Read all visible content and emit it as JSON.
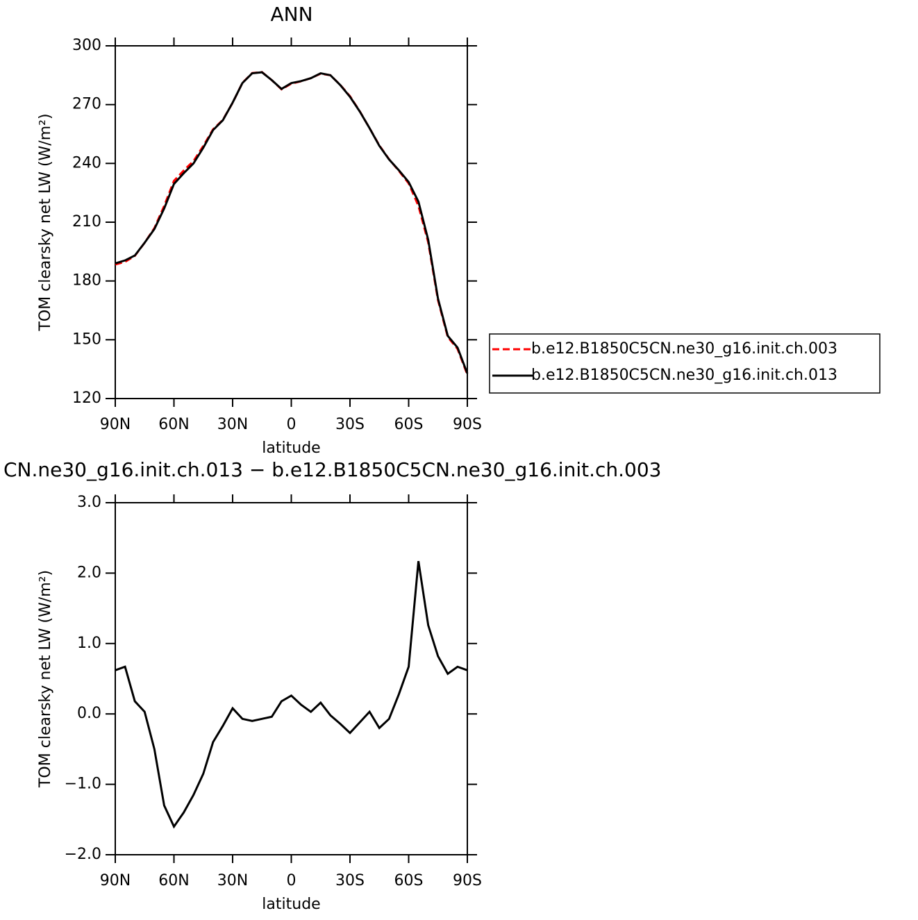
{
  "chart_data": [
    {
      "type": "line",
      "title": "ANN",
      "xlabel": "latitude",
      "ylabel": "TOM clearsky net LW (W/m²)",
      "x": [
        90,
        85,
        80,
        75,
        70,
        65,
        60,
        55,
        50,
        45,
        40,
        35,
        30,
        25,
        20,
        15,
        10,
        5,
        0,
        -5,
        -10,
        -15,
        -20,
        -25,
        -30,
        -35,
        -40,
        -45,
        -50,
        -55,
        -60,
        -65,
        -70,
        -75,
        -80,
        -85,
        -90
      ],
      "xlim": [
        90,
        -90
      ],
      "xticks": [
        {
          "value": 90,
          "label": "90N"
        },
        {
          "value": 60,
          "label": "60N"
        },
        {
          "value": 30,
          "label": "30N"
        },
        0,
        {
          "value": -30,
          "label": "30S"
        },
        {
          "value": -60,
          "label": "60S"
        },
        {
          "value": -90,
          "label": "90S"
        }
      ],
      "ylim": [
        120,
        300
      ],
      "yticks": [
        120,
        150,
        180,
        210,
        240,
        270,
        300
      ],
      "legend": "right",
      "series": [
        {
          "name": "b.e12.B1850C5CN.ne30_g16.init.ch.003",
          "color": "#ff0000",
          "dash": true,
          "values": [
            188.4,
            189.8,
            192.8,
            199.5,
            207,
            218.3,
            231.1,
            236.4,
            241.2,
            248.9,
            257.4,
            262.2,
            270.9,
            281.1,
            286.1,
            286.6,
            282.5,
            277.8,
            280.7,
            281.9,
            283.5,
            285.8,
            285,
            280.1,
            274.3,
            266.6,
            258,
            249.2,
            242.1,
            236.2,
            229.8,
            218.3,
            199.7,
            170.2,
            151.4,
            145.3,
            132.2
          ]
        },
        {
          "name": "b.e12.B1850C5CN.ne30_g16.init.ch.013",
          "color": "#000000",
          "dash": false,
          "values": [
            189,
            190.5,
            193,
            199.5,
            206.5,
            217,
            229.5,
            235,
            240,
            248,
            257,
            262,
            271,
            281,
            286,
            286.5,
            282.5,
            278,
            281,
            282,
            283.5,
            286,
            285,
            280,
            274,
            266.5,
            258,
            249,
            242,
            236.5,
            230.5,
            220.5,
            201,
            171,
            152,
            146,
            132.8
          ]
        }
      ]
    },
    {
      "type": "line",
      "title": "CN.ne30_g16.init.ch.013 − b.e12.B1850C5CN.ne30_g16.init.ch.003",
      "xlabel": "latitude",
      "ylabel": "TOM clearsky net LW (W/m²)",
      "x": [
        90,
        85,
        80,
        75,
        70,
        65,
        60,
        55,
        50,
        45,
        40,
        35,
        30,
        25,
        20,
        15,
        10,
        5,
        0,
        -5,
        -10,
        -15,
        -20,
        -25,
        -30,
        -35,
        -40,
        -45,
        -50,
        -55,
        -60,
        -65,
        -70,
        -75,
        -80,
        -85,
        -90
      ],
      "xlim": [
        90,
        -90
      ],
      "xticks": [
        {
          "value": 90,
          "label": "90N"
        },
        {
          "value": 60,
          "label": "60N"
        },
        {
          "value": 30,
          "label": "30N"
        },
        0,
        {
          "value": -30,
          "label": "30S"
        },
        {
          "value": -60,
          "label": "60S"
        },
        {
          "value": -90,
          "label": "90S"
        }
      ],
      "ylim": [
        -2,
        3
      ],
      "yticks": [
        {
          "value": -2,
          "label": "−2.0"
        },
        {
          "value": -1,
          "label": "−1.0"
        },
        {
          "value": 0,
          "label": "0.0"
        },
        {
          "value": 1,
          "label": "1.0"
        },
        {
          "value": 2,
          "label": "2.0"
        },
        {
          "value": 3,
          "label": "3.0"
        }
      ],
      "series": [
        {
          "color": "#000000",
          "dash": false,
          "values": [
            0.62,
            0.67,
            0.18,
            0.03,
            -0.5,
            -1.3,
            -1.6,
            -1.4,
            -1.15,
            -0.85,
            -0.4,
            -0.17,
            0.08,
            -0.07,
            -0.1,
            -0.07,
            -0.04,
            0.18,
            0.26,
            0.13,
            0.03,
            0.16,
            -0.02,
            -0.14,
            -0.27,
            -0.12,
            0.03,
            -0.2,
            -0.07,
            0.28,
            0.67,
            2.17,
            1.26,
            0.82,
            0.57,
            0.67,
            0.62
          ]
        }
      ]
    }
  ]
}
